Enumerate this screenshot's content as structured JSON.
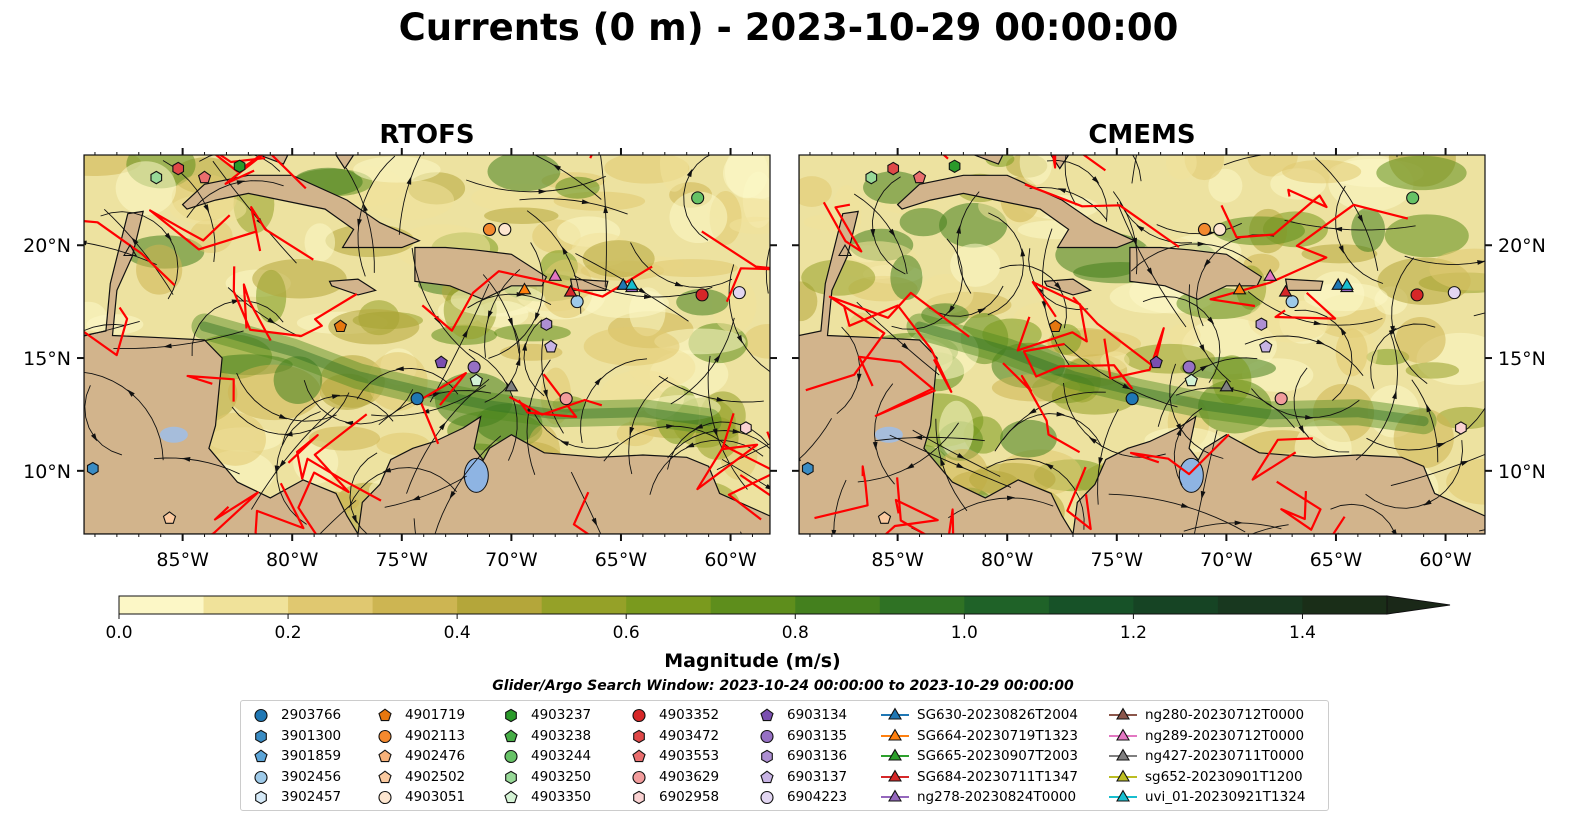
{
  "title": "Currents (0 m) - 2023-10-29 00:00:00",
  "panels": [
    {
      "title": "RTOFS"
    },
    {
      "title": "CMEMS"
    }
  ],
  "map_axes": {
    "x_ticks": [
      "85°W",
      "80°W",
      "75°W",
      "70°W",
      "65°W",
      "60°W"
    ],
    "y_ticks": [
      "20°N",
      "15°N",
      "10°N"
    ]
  },
  "colorbar": {
    "label": "Magnitude (m/s)",
    "ticks": [
      "0.0",
      "0.2",
      "0.4",
      "0.6",
      "0.8",
      "1.0",
      "1.2",
      "1.4"
    ],
    "colors": [
      "#fcf7c6",
      "#f0e29a",
      "#e0c870",
      "#cdb552",
      "#b4a63a",
      "#95a128",
      "#7a9a1e",
      "#5e8e1c",
      "#44801e",
      "#2f7224",
      "#1f6228",
      "#175228",
      "#164424",
      "#18381f",
      "#1a2e18"
    ]
  },
  "search_window": "Glider/Argo Search Window: 2023-10-24 00:00:00 to 2023-10-29 00:00:00",
  "legend": {
    "columns": [
      [
        {
          "label": "2903766",
          "marker": "circle",
          "color": "#1f77b4"
        },
        {
          "label": "3901300",
          "marker": "hexagon",
          "color": "#3a8cc4"
        },
        {
          "label": "3901859",
          "marker": "pentagon",
          "color": "#5ca5d8"
        },
        {
          "label": "3902456",
          "marker": "circle",
          "color": "#9ecae9"
        },
        {
          "label": "3902457",
          "marker": "hexagon",
          "color": "#d6eaf8"
        }
      ],
      [
        {
          "label": "4901719",
          "marker": "pentagon",
          "color": "#e6770f"
        },
        {
          "label": "4902113",
          "marker": "circle",
          "color": "#f4892e"
        },
        {
          "label": "4902476",
          "marker": "pentagon",
          "color": "#f8b27a"
        },
        {
          "label": "4902502",
          "marker": "pentagon",
          "color": "#fbcaa0"
        },
        {
          "label": "4903051",
          "marker": "circle",
          "color": "#fde6d0"
        }
      ],
      [
        {
          "label": "4903237",
          "marker": "hexagon",
          "color": "#2a9a2a"
        },
        {
          "label": "4903238",
          "marker": "pentagon",
          "color": "#46ad46"
        },
        {
          "label": "4903244",
          "marker": "circle",
          "color": "#66c266"
        },
        {
          "label": "4903250",
          "marker": "hexagon",
          "color": "#98d998"
        },
        {
          "label": "4903350",
          "marker": "pentagon",
          "color": "#d4f2d4"
        }
      ],
      [
        {
          "label": "4903352",
          "marker": "circle",
          "color": "#d62728"
        },
        {
          "label": "4903472",
          "marker": "hexagon",
          "color": "#e04848"
        },
        {
          "label": "4903553",
          "marker": "pentagon",
          "color": "#ea6e6e"
        },
        {
          "label": "4903629",
          "marker": "circle",
          "color": "#f29c9c"
        },
        {
          "label": "6902958",
          "marker": "hexagon",
          "color": "#fad2d2"
        }
      ],
      [
        {
          "label": "6903134",
          "marker": "pentagon",
          "color": "#7a4fb0"
        },
        {
          "label": "6903135",
          "marker": "circle",
          "color": "#9670c4"
        },
        {
          "label": "6903136",
          "marker": "hexagon",
          "color": "#ad8fd2"
        },
        {
          "label": "6903137",
          "marker": "pentagon",
          "color": "#c8b4e4"
        },
        {
          "label": "6904223",
          "marker": "circle",
          "color": "#e2d6f2"
        }
      ],
      [
        {
          "label": "SG630-20230826T2004",
          "marker": "triangle",
          "color": "#1f77b4"
        },
        {
          "label": "SG664-20230719T1323",
          "marker": "triangle",
          "color": "#ff7f0e"
        },
        {
          "label": "SG665-20230907T2003",
          "marker": "triangle",
          "color": "#2ca02c"
        },
        {
          "label": "SG684-20230711T1347",
          "marker": "triangle",
          "color": "#d62728"
        },
        {
          "label": "ng278-20230824T0000",
          "marker": "triangle",
          "color": "#9467bd"
        }
      ],
      [
        {
          "label": "ng280-20230712T0000",
          "marker": "triangle",
          "color": "#8c564b"
        },
        {
          "label": "ng289-20230712T0000",
          "marker": "triangle",
          "color": "#e377c2"
        },
        {
          "label": "ng427-20230711T0000",
          "marker": "triangle",
          "color": "#7f7f7f"
        },
        {
          "label": "sg652-20230901T1200",
          "marker": "triangle",
          "color": "#bcbd22"
        },
        {
          "label": "uvi_01-20230921T1324",
          "marker": "triangle",
          "color": "#17becf"
        }
      ]
    ]
  },
  "chart_data": {
    "type": "heatmap",
    "title": "Currents (0 m) - 2023-10-29 00:00:00",
    "subplots": [
      "RTOFS",
      "CMEMS"
    ],
    "lon_range": [
      -89.5,
      -58.2
    ],
    "lat_range": [
      7.2,
      24.0
    ],
    "x_ticks": [
      "85°W",
      "80°W",
      "75°W",
      "70°W",
      "65°W",
      "60°W"
    ],
    "y_ticks": [
      "20°N",
      "15°N",
      "10°N"
    ],
    "colorbar_range": [
      0.0,
      1.5
    ],
    "colorbar_label": "Magnitude (m/s)",
    "colorbar_extend": "max",
    "observations": [
      {
        "label": "2903766",
        "marker": "circle",
        "lon": -74.3,
        "lat": 13.2
      },
      {
        "label": "3901300",
        "marker": "hexagon",
        "lon": -89.1,
        "lat": 10.1
      },
      {
        "label": "3902456",
        "marker": "circle",
        "lon": -67.0,
        "lat": 17.5
      },
      {
        "label": "4902113",
        "marker": "circle",
        "lon": -71.0,
        "lat": 20.7
      },
      {
        "label": "4902502",
        "marker": "pentagon",
        "lon": -85.6,
        "lat": 7.9
      },
      {
        "label": "4901719",
        "marker": "pentagon",
        "lon": -77.8,
        "lat": 16.4
      },
      {
        "label": "4903051",
        "marker": "circle",
        "lon": -70.3,
        "lat": 20.7
      },
      {
        "label": "4903237",
        "marker": "hexagon",
        "lon": -82.4,
        "lat": 23.5
      },
      {
        "label": "4903244",
        "marker": "circle",
        "lon": -61.5,
        "lat": 22.1
      },
      {
        "label": "4903250",
        "marker": "hexagon",
        "lon": -86.2,
        "lat": 23.0
      },
      {
        "label": "4903350",
        "marker": "pentagon",
        "lon": -71.6,
        "lat": 14.0
      },
      {
        "label": "4903352",
        "marker": "circle",
        "lon": -61.3,
        "lat": 17.8
      },
      {
        "label": "4903472",
        "marker": "hexagon",
        "lon": -85.2,
        "lat": 23.4
      },
      {
        "label": "4903553",
        "marker": "pentagon",
        "lon": -84.0,
        "lat": 23.0
      },
      {
        "label": "4903629",
        "marker": "circle",
        "lon": -67.5,
        "lat": 13.2
      },
      {
        "label": "6902958",
        "marker": "hexagon",
        "lon": -59.3,
        "lat": 11.9
      },
      {
        "label": "6903134",
        "marker": "pentagon",
        "lon": -73.2,
        "lat": 14.8
      },
      {
        "label": "6903135",
        "marker": "circle",
        "lon": -71.7,
        "lat": 14.6
      },
      {
        "label": "6903136",
        "marker": "hexagon",
        "lon": -68.4,
        "lat": 16.5
      },
      {
        "label": "6903137",
        "marker": "pentagon",
        "lon": -68.2,
        "lat": 15.5
      },
      {
        "label": "6904223",
        "marker": "circle",
        "lon": -59.6,
        "lat": 17.9
      },
      {
        "label": "SG630-20230826T2004",
        "marker": "triangle",
        "lon": -64.9,
        "lat": 18.2
      },
      {
        "label": "SG664-20230719T1323",
        "marker": "triangle",
        "lon": -69.4,
        "lat": 18.0
      },
      {
        "label": "SG684-20230711T1347",
        "marker": "triangle",
        "lon": -67.3,
        "lat": 17.9
      },
      {
        "label": "ng278-20230824T0000",
        "marker": "triangle",
        "lon": -64.5,
        "lat": 18.1
      },
      {
        "label": "ng289-20230712T0000",
        "marker": "triangle",
        "lon": -68.0,
        "lat": 18.6
      },
      {
        "label": "ng427-20230711T0000",
        "marker": "triangle",
        "lon": -70.0,
        "lat": 13.7
      },
      {
        "label": "sg652-20230901T1200",
        "marker": "triangle",
        "lon": -87.4,
        "lat": 19.7
      },
      {
        "label": "uvi_01-20230921T1324",
        "marker": "triangle",
        "lon": -64.5,
        "lat": 18.2
      }
    ]
  }
}
